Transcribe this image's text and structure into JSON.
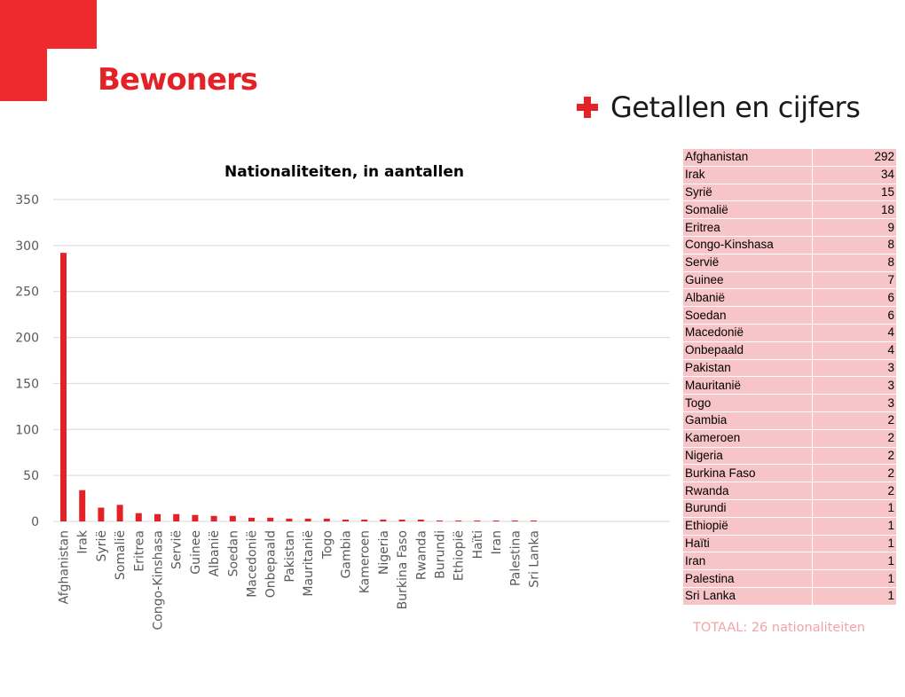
{
  "page": {
    "title": "Bewoners",
    "subtitle": "Getallen en cijfers",
    "total_note": "TOTAAL: 26 nationaliteiten",
    "accent_color": "#e32227",
    "table_cell_color": "#f7c4c7",
    "subtitle_icon": "plus-icon"
  },
  "chart_data": {
    "type": "bar",
    "title": "Nationaliteiten, in aantallen",
    "xlabel": "",
    "ylabel": "",
    "ylim": [
      0,
      350
    ],
    "yticks": [
      0,
      50,
      100,
      150,
      200,
      250,
      300,
      350
    ],
    "grid": true,
    "legend": "none",
    "bar_color": "#e32227",
    "categories": [
      "Afghanistan",
      "Irak",
      "Syrië",
      "Somalië",
      "Eritrea",
      "Congo-Kinshasa",
      "Servië",
      "Guinee",
      "Albanië",
      "Soedan",
      "Macedonië",
      "Onbepaald",
      "Pakistan",
      "Mauritanië",
      "Togo",
      "Gambia",
      "Kameroen",
      "Nigeria",
      "Burkina Faso",
      "Rwanda",
      "Burundi",
      "Ethiopië",
      "Haïti",
      "Iran",
      "Palestina",
      "Sri Lanka"
    ],
    "values": [
      292,
      34,
      15,
      18,
      9,
      8,
      8,
      7,
      6,
      6,
      4,
      4,
      3,
      3,
      3,
      2,
      2,
      2,
      2,
      2,
      1,
      1,
      1,
      1,
      1,
      1
    ]
  },
  "table": {
    "rows": [
      {
        "country": "Afghanistan",
        "count": "292"
      },
      {
        "country": "Irak",
        "count": "34"
      },
      {
        "country": "Syrië",
        "count": "15"
      },
      {
        "country": "Somalië",
        "count": "18"
      },
      {
        "country": "Eritrea",
        "count": "9"
      },
      {
        "country": "Congo-Kinshasa",
        "count": "8"
      },
      {
        "country": "Servië",
        "count": "8"
      },
      {
        "country": "Guinee",
        "count": "7"
      },
      {
        "country": "Albanië",
        "count": "6"
      },
      {
        "country": "Soedan",
        "count": "6"
      },
      {
        "country": "Macedonië",
        "count": "4"
      },
      {
        "country": "Onbepaald",
        "count": "4"
      },
      {
        "country": "Pakistan",
        "count": "3"
      },
      {
        "country": "Mauritanië",
        "count": "3"
      },
      {
        "country": "Togo",
        "count": "3"
      },
      {
        "country": "Gambia",
        "count": "2"
      },
      {
        "country": "Kameroen",
        "count": "2"
      },
      {
        "country": "Nigeria",
        "count": "2"
      },
      {
        "country": "Burkina Faso",
        "count": "2"
      },
      {
        "country": "Rwanda",
        "count": "2"
      },
      {
        "country": "Burundi",
        "count": "1"
      },
      {
        "country": "Ethiopië",
        "count": "1"
      },
      {
        "country": "Haïti",
        "count": "1"
      },
      {
        "country": "Iran",
        "count": "1"
      },
      {
        "country": "Palestina",
        "count": "1"
      },
      {
        "country": "Sri Lanka",
        "count": "1"
      }
    ]
  }
}
